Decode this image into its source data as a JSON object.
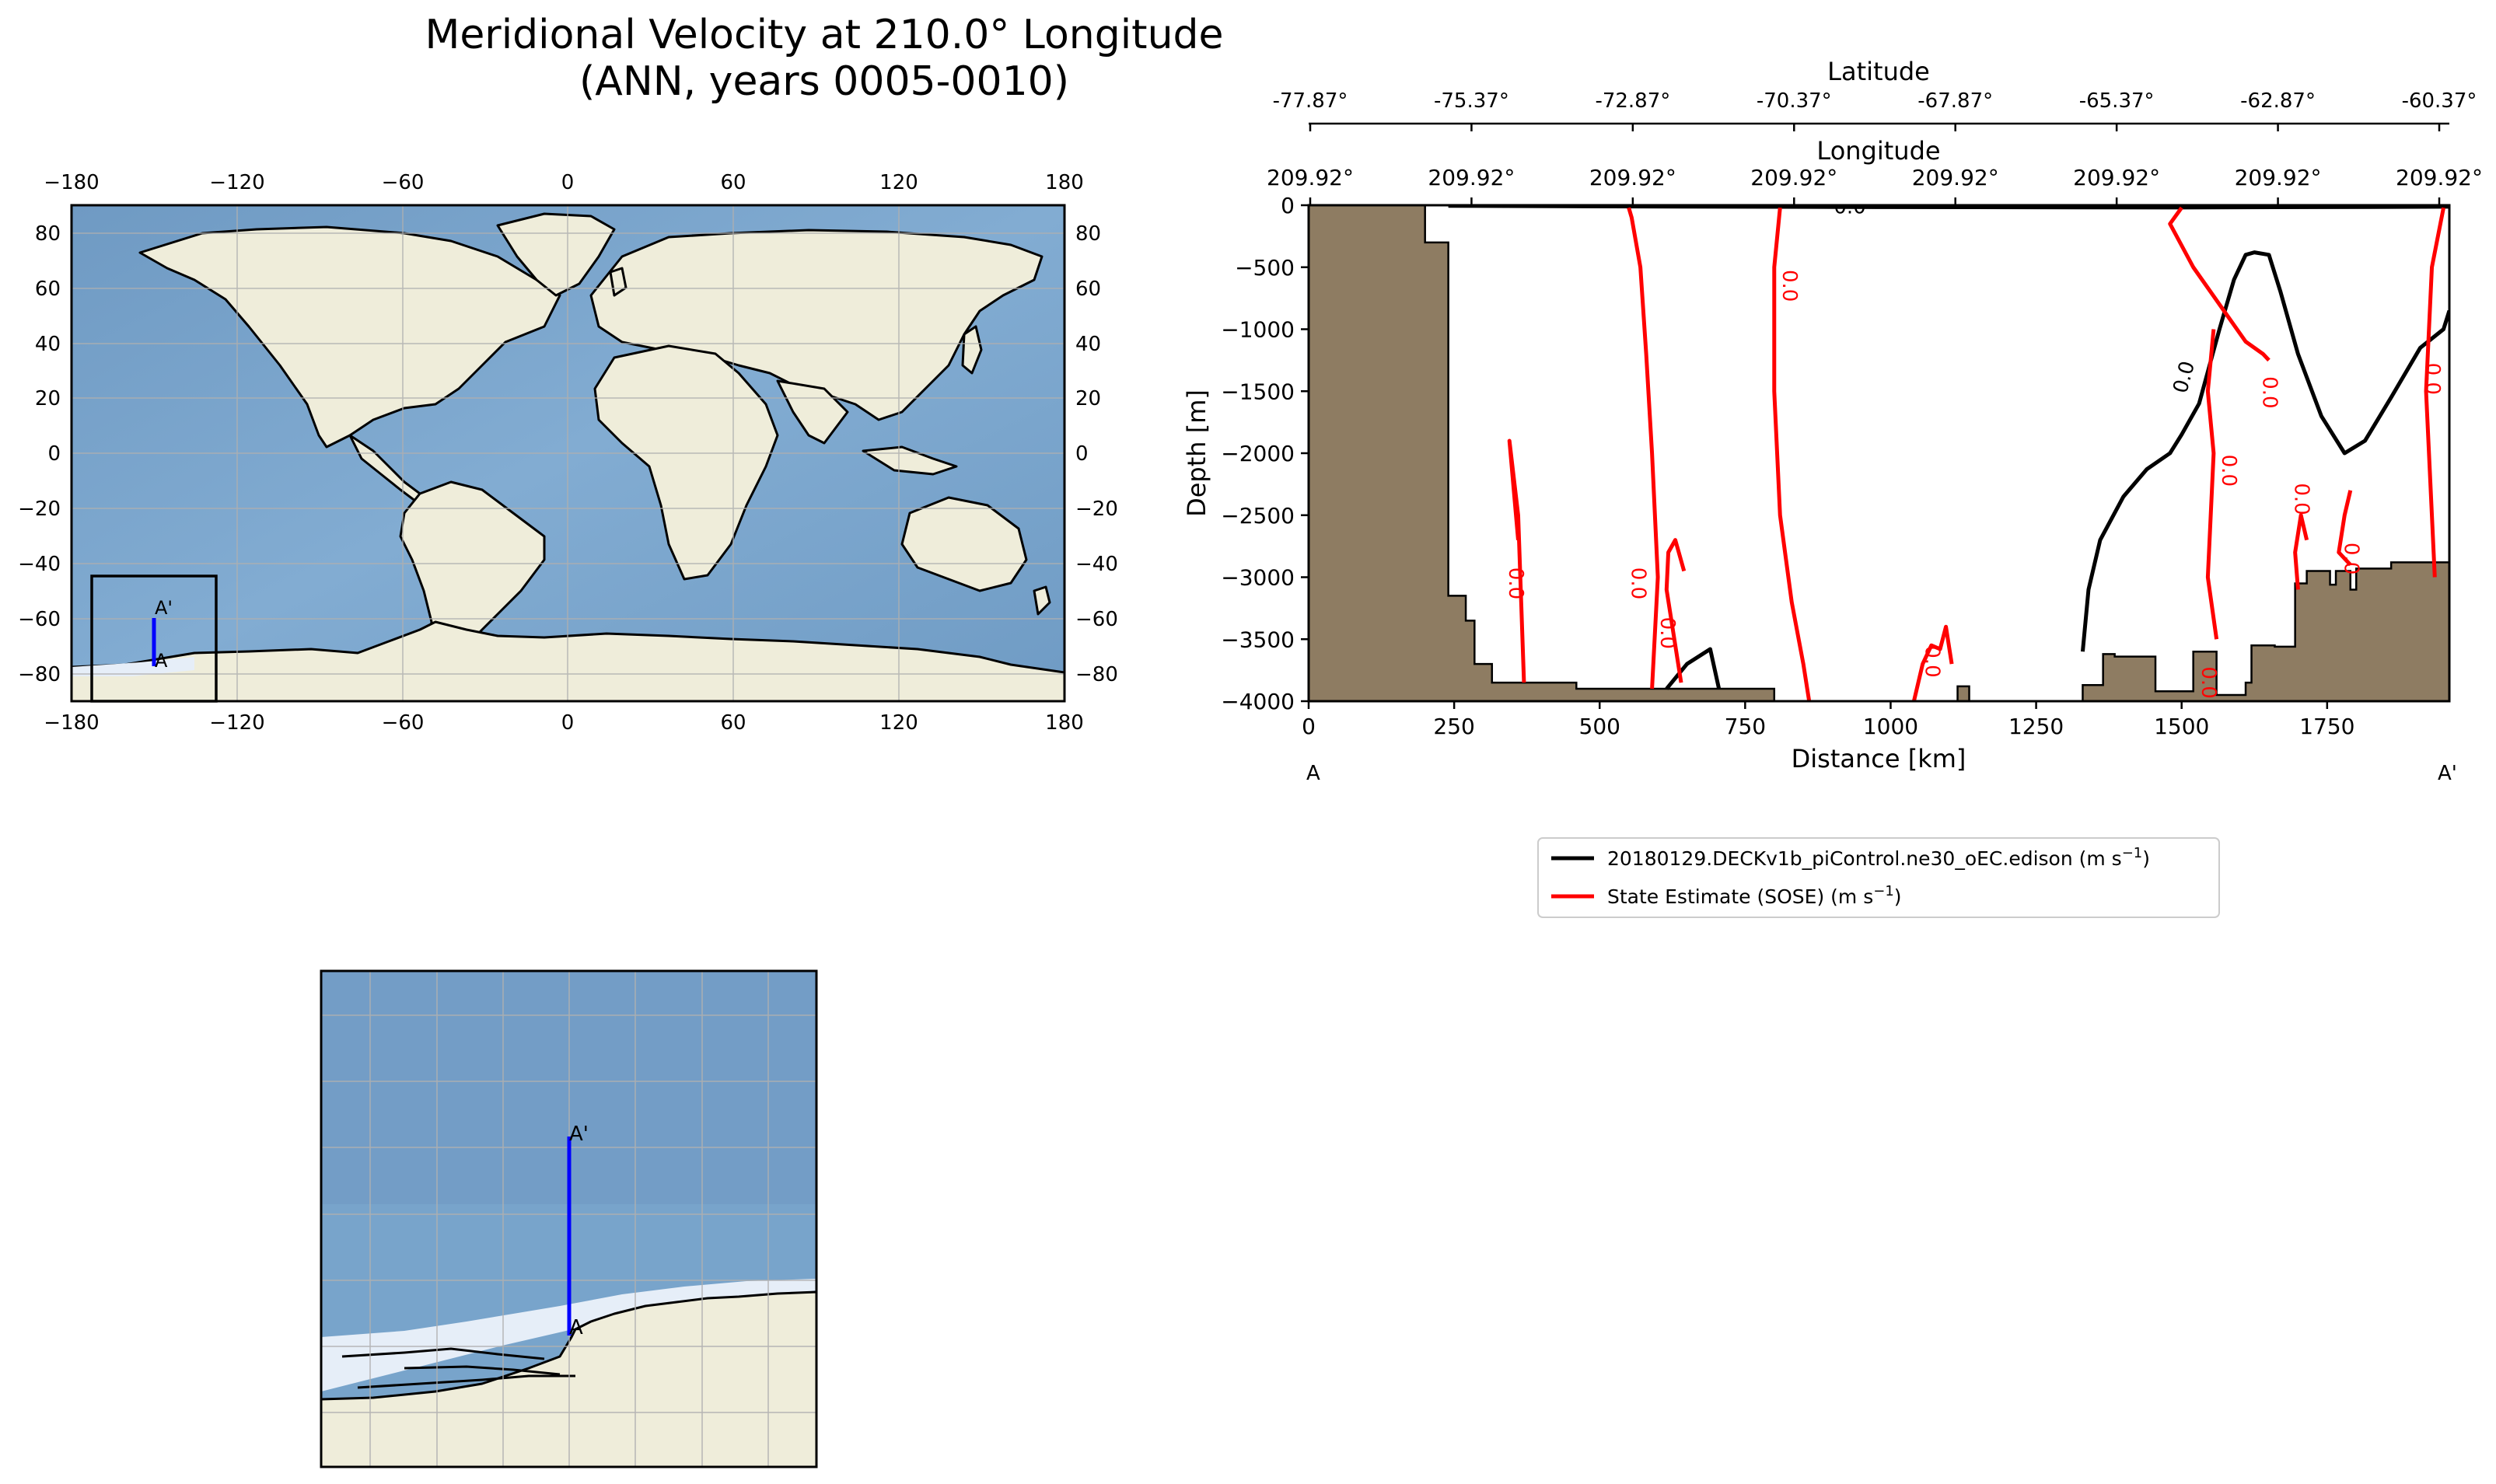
{
  "title": {
    "line1": "Meridional Velocity at 210.0° Longitude",
    "line2": "(ANN, years 0005-0010)"
  },
  "colors": {
    "ocean": "#7fa7cc",
    "ocean_deep": "#6f9bc4",
    "land": "#efedda",
    "sea_ice": "#e6eef8",
    "bathymetry": "#8e7c62",
    "transect": "#0000ff",
    "model_contour": "#000000",
    "obs_contour": "#ff0000",
    "grid": "#b0b0b0"
  },
  "world_map": {
    "name": "global map with transect location",
    "xticks": [
      "−180",
      "−120",
      "−60",
      "0",
      "60",
      "120",
      "180"
    ],
    "yticks_left": [
      "80",
      "60",
      "40",
      "20",
      "0",
      "−20",
      "−40",
      "−60",
      "−80"
    ],
    "yticks_right": [
      "80",
      "60",
      "40",
      "20",
      "0",
      "−20",
      "−40",
      "−60",
      "−80"
    ],
    "xlim": [
      -180,
      180
    ],
    "ylim": [
      -90,
      90
    ],
    "inset_box": {
      "lon": [
        -173,
        -128
      ],
      "lat": [
        -90,
        -44
      ]
    },
    "transect": {
      "lon": -150,
      "lat": [
        -77.87,
        -60.37
      ]
    },
    "label_start": "A",
    "label_end": "A'"
  },
  "zoom_map": {
    "name": "regional map zoom of transect",
    "label_start": "A",
    "label_end": "A'"
  },
  "chart_data": {
    "type": "line",
    "title": "Meridional Velocity at 210.0° Longitude (ANN, years 0005-0010)",
    "xlabel": "Distance [km]",
    "ylabel": "Depth [m]",
    "xlim": [
      0,
      1960
    ],
    "ylim": [
      -4000,
      0
    ],
    "xticks": [
      0,
      250,
      500,
      750,
      1000,
      1250,
      1500,
      1750
    ],
    "xtick_labels": [
      "0",
      "250",
      "500",
      "750",
      "1000",
      "1250",
      "1500",
      "1750"
    ],
    "yticks": [
      0,
      -500,
      -1000,
      -1500,
      -2000,
      -2500,
      -3000,
      -3500,
      -4000
    ],
    "ytick_labels": [
      "0",
      "−500",
      "−1000",
      "−1500",
      "−2000",
      "−2500",
      "−3000",
      "−3500",
      "−4000"
    ],
    "top_axis_1": {
      "label": "Latitude",
      "ticks": [
        "-77.87°",
        "-75.37°",
        "-72.87°",
        "-70.37°",
        "-67.87°",
        "-65.37°",
        "-62.87°",
        "-60.37°"
      ]
    },
    "top_axis_2": {
      "label": "Longitude",
      "ticks": [
        "209.92°",
        "209.92°",
        "209.92°",
        "209.92°",
        "209.92°",
        "209.92°",
        "209.92°",
        "209.92°"
      ]
    },
    "endpoint_left": "A",
    "endpoint_right": "A'",
    "bathymetry": {
      "name": "seafloor",
      "x": [
        0,
        200,
        200,
        240,
        240,
        270,
        270,
        285,
        285,
        315,
        315,
        460,
        460,
        800,
        800,
        1115,
        1115,
        1135,
        1135,
        1330,
        1330,
        1365,
        1365,
        1385,
        1385,
        1455,
        1455,
        1520,
        1520,
        1560,
        1560,
        1610,
        1610,
        1620,
        1620,
        1660,
        1660,
        1695,
        1695,
        1715,
        1715,
        1755,
        1755,
        1765,
        1765,
        1790,
        1790,
        1800,
        1800,
        1860,
        1860,
        1960
      ],
      "y": [
        0,
        0,
        -300,
        -300,
        -3150,
        -3150,
        -3350,
        -3350,
        -3700,
        -3700,
        -3850,
        -3850,
        -3900,
        -3900,
        -4000,
        -4000,
        -3880,
        -3880,
        -4000,
        -4000,
        -3870,
        -3870,
        -3620,
        -3620,
        -3640,
        -3640,
        -3920,
        -3920,
        -3600,
        -3600,
        -3950,
        -3950,
        -3850,
        -3850,
        -3550,
        -3550,
        -3560,
        -3560,
        -3050,
        -3050,
        -2950,
        -2950,
        -3060,
        -3060,
        -2950,
        -2950,
        -3100,
        -3100,
        -2930,
        -2930,
        -2880,
        -2880
      ]
    },
    "series": [
      {
        "name": "20180129.DECKv1b_piControl.ne30_oEC.edison (m s⁻¹)",
        "legend_label": "20180129.DECKv1b_piControl.ne30_oEC.edison (m s",
        "color": "#000000",
        "contour_level": "0.0",
        "lines": [
          {
            "x": [
              240,
              580,
              1000,
              1500,
              1960
            ],
            "y": [
              -5,
              -10,
              -15,
              -18,
              -12
            ]
          },
          {
            "x": [
              1330,
              1340,
              1360,
              1400,
              1440,
              1480,
              1500,
              1530,
              1565,
              1590,
              1610,
              1625,
              1650,
              1670,
              1700,
              1740,
              1780,
              1815,
              1860,
              1910,
              1950,
              1960
            ],
            "y": [
              -3600,
              -3100,
              -2700,
              -2350,
              -2130,
              -2000,
              -1850,
              -1600,
              -1000,
              -600,
              -400,
              -380,
              -400,
              -700,
              -1200,
              -1700,
              -2000,
              -1900,
              -1550,
              -1150,
              -1000,
              -850
            ]
          },
          {
            "x": [
              615,
              650,
              690,
              705
            ],
            "y": [
              -3900,
              -3700,
              -3580,
              -3900
            ]
          }
        ]
      },
      {
        "name": "State Estimate (SOSE) (m s⁻¹)",
        "legend_label": "State Estimate (SOSE) (m s",
        "color": "#ff0000",
        "contour_level": "0.0",
        "lines": [
          {
            "x": [
              590,
              600,
              590,
              580,
              570,
              555,
              550
            ],
            "y": [
              -3900,
              -3000,
              -2000,
              -1200,
              -500,
              -100,
              -20
            ]
          },
          {
            "x": [
              810,
              800,
              800,
              810,
              830,
              850,
              860
            ],
            "y": [
              -20,
              -500,
              -1500,
              -2500,
              -3200,
              -3700,
              -4000
            ]
          },
          {
            "x": [
              1500,
              1480,
              1520,
              1580,
              1610,
              1640,
              1650
            ],
            "y": [
              -20,
              -150,
              -500,
              -900,
              -1100,
              -1200,
              -1250
            ]
          },
          {
            "x": [
              1950,
              1930,
              1920,
              1930,
              1935
            ],
            "y": [
              -20,
              -500,
              -1500,
              -2500,
              -3000
            ]
          },
          {
            "x": [
              370,
              360,
              350,
              345,
              360
            ],
            "y": [
              -3850,
              -2500,
              -2100,
              -1900,
              -2700
            ]
          },
          {
            "x": [
              640,
              625,
              615,
              618,
              630,
              645
            ],
            "y": [
              -3850,
              -3400,
              -3100,
              -2800,
              -2700,
              -2950
            ]
          },
          {
            "x": [
              1560,
              1545,
              1555,
              1545,
              1555
            ],
            "y": [
              -3500,
              -3000,
              -2000,
              -1500,
              -1000
            ]
          },
          {
            "x": [
              1790,
              1770,
              1780,
              1790
            ],
            "y": [
              -2900,
              -2800,
              -2500,
              -2300
            ]
          },
          {
            "x": [
              1040,
              1055,
              1070,
              1085,
              1095,
              1105
            ],
            "y": [
              -4000,
              -3700,
              -3550,
              -3580,
              -3400,
              -3700
            ]
          },
          {
            "x": [
              1700,
              1695,
              1705,
              1715
            ],
            "y": [
              -3100,
              -2800,
              -2500,
              -2700
            ]
          }
        ],
        "labels": [
          {
            "x": 815,
            "y": -650,
            "text": "0.0"
          },
          {
            "x": 345,
            "y": -3050,
            "text": "0.0"
          },
          {
            "x": 555,
            "y": -3050,
            "text": "0.0"
          },
          {
            "x": 605,
            "y": -3450,
            "text": "0.0"
          },
          {
            "x": 1060,
            "y": -3680,
            "text": "0.0"
          },
          {
            "x": 1535,
            "y": -3850,
            "text": "0.0"
          },
          {
            "x": 1570,
            "y": -2140,
            "text": "0.0"
          },
          {
            "x": 1640,
            "y": -1510,
            "text": "0.0"
          },
          {
            "x": 1920,
            "y": -1400,
            "text": "0.0"
          },
          {
            "x": 1695,
            "y": -2370,
            "text": "0.0"
          },
          {
            "x": 1780,
            "y": -2850,
            "text": "0.0"
          }
        ]
      }
    ],
    "black_labels": [
      {
        "x": 930,
        "y": -10,
        "text": "0.0"
      },
      {
        "x": 1515,
        "y": -1400,
        "text": "0.0"
      }
    ],
    "legend_placement": "below"
  },
  "legend": {
    "model": "20180129.DECKv1b_piControl.ne30_oEC.edison (m s",
    "obs": "State Estimate (SOSE) (m s",
    "unit_sup": "−1",
    "unit_close": ")"
  }
}
